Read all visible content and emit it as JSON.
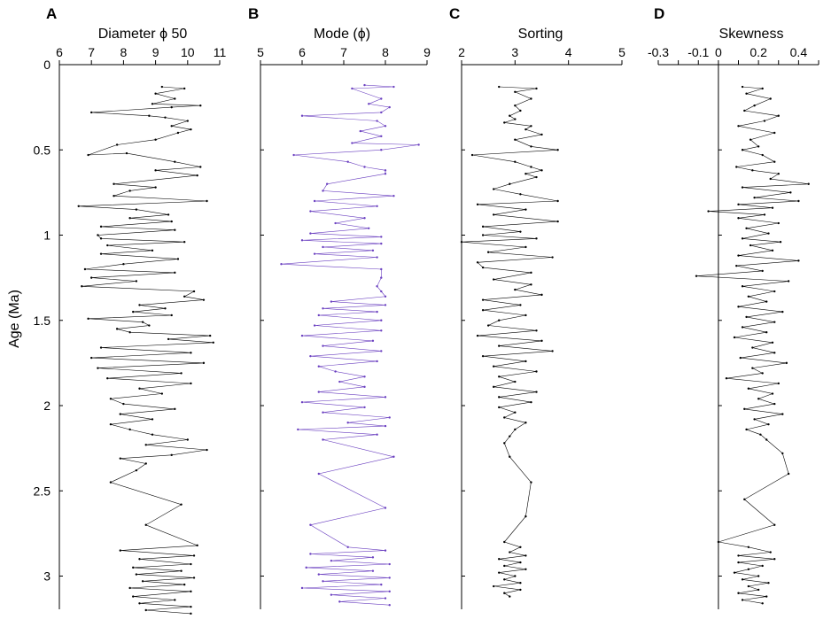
{
  "chart_data": {
    "type": "line",
    "ylabel": "Age (Ma)",
    "y_axis": {
      "ticks": [
        0,
        0.5,
        1,
        1.5,
        2,
        2.5,
        3
      ],
      "tick_labels": [
        "0",
        "0.5",
        "1",
        "1.5",
        "2",
        "2.5",
        "3"
      ],
      "range": [
        0,
        3.2
      ],
      "reversed": true
    },
    "panels": [
      {
        "letter": "A",
        "title": "Diameter ϕ 50",
        "xlim": [
          6,
          11
        ],
        "xticks": [
          6,
          7,
          8,
          9,
          10,
          11
        ],
        "xtick_labels": [
          "6",
          "7",
          "8",
          "9",
          "10",
          "11"
        ],
        "color": "#000000",
        "series": [
          {
            "x": [
              9.2,
              9.9,
              9.0,
              9.6,
              8.9,
              10.4,
              9.5,
              7.0,
              8.8,
              9.3,
              10.0,
              9.5,
              10.1,
              9.7,
              9.0,
              7.8,
              6.9,
              8.1,
              9.6,
              10.4,
              9.0,
              10.3,
              7.7,
              9.0,
              8.2,
              7.7,
              10.6,
              6.6,
              8.4,
              9.4,
              8.2,
              9.5,
              7.3,
              9.6,
              7.2,
              7.3,
              9.9,
              7.5,
              8.9,
              7.3,
              9.7,
              8.0,
              6.8,
              9.6,
              7.0,
              8.4,
              6.7,
              10.2,
              9.9,
              10.5,
              8.5,
              9.3,
              8.3,
              9.5,
              6.9,
              8.6,
              8.8,
              7.8,
              8.2,
              10.7,
              9.4,
              10.8,
              7.3,
              10.1,
              7.0,
              10.5,
              7.2,
              9.8,
              7.5,
              10.1,
              8.5,
              9.2,
              7.6,
              8.0,
              9.6,
              7.9,
              8.9,
              7.6,
              8.2,
              8.9,
              10.0,
              8.7,
              10.6,
              9.5,
              7.9,
              8.7,
              8.4,
              7.6,
              9.8,
              8.7,
              10.3,
              7.9,
              10.2,
              8.5,
              10.1,
              8.3,
              9.8,
              8.4,
              10.2,
              8.6,
              9.9,
              8.2,
              10.1,
              8.3,
              9.6,
              8.5,
              10.1,
              8.7,
              10.1
            ],
            "y": [
              0.13,
              0.14,
              0.17,
              0.2,
              0.23,
              0.24,
              0.25,
              0.28,
              0.3,
              0.31,
              0.33,
              0.36,
              0.38,
              0.4,
              0.44,
              0.47,
              0.53,
              0.52,
              0.57,
              0.6,
              0.62,
              0.65,
              0.7,
              0.72,
              0.74,
              0.77,
              0.8,
              0.83,
              0.85,
              0.88,
              0.9,
              0.92,
              0.95,
              0.97,
              1.0,
              1.02,
              1.04,
              1.06,
              1.09,
              1.11,
              1.14,
              1.17,
              1.2,
              1.22,
              1.25,
              1.27,
              1.3,
              1.33,
              1.36,
              1.38,
              1.41,
              1.43,
              1.45,
              1.47,
              1.49,
              1.51,
              1.53,
              1.55,
              1.57,
              1.59,
              1.61,
              1.63,
              1.66,
              1.69,
              1.72,
              1.75,
              1.78,
              1.81,
              1.84,
              1.87,
              1.9,
              1.93,
              1.96,
              1.99,
              2.02,
              2.05,
              2.08,
              2.11,
              2.14,
              2.17,
              2.2,
              2.23,
              2.26,
              2.29,
              2.31,
              2.34,
              2.38,
              2.45,
              2.58,
              2.7,
              2.82,
              2.85,
              2.88,
              2.9,
              2.93,
              2.95,
              2.97,
              2.99,
              3.01,
              3.03,
              3.05,
              3.07,
              3.09,
              3.12,
              3.14,
              3.16,
              3.18,
              3.2,
              3.22
            ]
          }
        ]
      },
      {
        "letter": "B",
        "title": "Mode (ϕ)",
        "xlim": [
          5,
          9
        ],
        "xticks": [
          5,
          6,
          7,
          8,
          9
        ],
        "xtick_labels": [
          "5",
          "6",
          "7",
          "8",
          "9"
        ],
        "color": "#6a3fc0",
        "series": [
          {
            "x": [
              7.5,
              8.2,
              7.2,
              7.9,
              7.6,
              8.1,
              7.9,
              6.0,
              7.8,
              8.0,
              7.4,
              7.9,
              7.2,
              8.8,
              7.9,
              5.8,
              7.1,
              7.5,
              8.0,
              8.0,
              6.6,
              6.5,
              8.2,
              6.3,
              7.8,
              6.2,
              7.5,
              6.8,
              7.6,
              6.2,
              7.9,
              6.0,
              7.9,
              6.5,
              7.7,
              6.3,
              7.8,
              5.5,
              7.9,
              7.9,
              7.8,
              7.9,
              8.0,
              6.7,
              8.0,
              6.5,
              7.8,
              6.4,
              7.9,
              6.3,
              7.9,
              6.0,
              7.7,
              6.5,
              7.9,
              6.2,
              7.8,
              6.4,
              6.8,
              7.5,
              6.9,
              7.5,
              6.4,
              8.0,
              6.0,
              7.5,
              6.5,
              8.1,
              7.1,
              8.0,
              5.9,
              7.8,
              6.5,
              8.2,
              6.4,
              8.0,
              6.2,
              7.1,
              8.0,
              6.2,
              7.7,
              6.7,
              8.1,
              6.1,
              7.7,
              6.4,
              8.1,
              6.5,
              7.9,
              6.0,
              8.1,
              6.7,
              8.0,
              6.9,
              8.1
            ],
            "y": [
              0.12,
              0.13,
              0.14,
              0.2,
              0.23,
              0.25,
              0.28,
              0.3,
              0.33,
              0.36,
              0.39,
              0.42,
              0.46,
              0.47,
              0.5,
              0.53,
              0.57,
              0.6,
              0.62,
              0.64,
              0.7,
              0.74,
              0.77,
              0.8,
              0.83,
              0.86,
              0.9,
              0.93,
              0.96,
              0.99,
              1.01,
              1.03,
              1.05,
              1.07,
              1.09,
              1.11,
              1.13,
              1.17,
              1.2,
              1.25,
              1.3,
              1.33,
              1.36,
              1.39,
              1.41,
              1.43,
              1.45,
              1.47,
              1.5,
              1.53,
              1.56,
              1.59,
              1.62,
              1.65,
              1.68,
              1.71,
              1.74,
              1.77,
              1.8,
              1.83,
              1.86,
              1.89,
              1.92,
              1.95,
              1.98,
              2.01,
              2.04,
              2.07,
              2.1,
              2.12,
              2.14,
              2.17,
              2.2,
              2.3,
              2.4,
              2.6,
              2.7,
              2.83,
              2.85,
              2.87,
              2.89,
              2.91,
              2.93,
              2.95,
              2.97,
              2.99,
              3.01,
              3.03,
              3.05,
              3.07,
              3.09,
              3.11,
              3.13,
              3.15,
              3.17
            ]
          }
        ]
      },
      {
        "letter": "C",
        "title": "Sorting",
        "xlim": [
          2,
          5
        ],
        "xticks": [
          2,
          3,
          4,
          5
        ],
        "xtick_labels": [
          "2",
          "3",
          "4",
          "5"
        ],
        "color": "#000000",
        "series": [
          {
            "x": [
              2.7,
              3.4,
              3.0,
              3.3,
              3.0,
              3.1,
              2.9,
              3.0,
              2.8,
              3.3,
              3.2,
              3.5,
              3.0,
              3.3,
              3.8,
              2.2,
              3.0,
              3.3,
              3.5,
              3.2,
              3.4,
              2.9,
              2.6,
              3.1,
              3.8,
              2.3,
              3.2,
              2.6,
              3.8,
              2.4,
              3.1,
              2.4,
              3.4,
              2.0,
              3.2,
              2.5,
              3.7,
              2.3,
              2.4,
              3.3,
              2.6,
              3.3,
              3.0,
              3.5,
              2.4,
              3.1,
              2.4,
              3.2,
              2.7,
              2.5,
              3.4,
              2.3,
              3.5,
              2.7,
              3.7,
              2.4,
              3.2,
              2.6,
              3.4,
              2.7,
              3.0,
              2.6,
              3.4,
              2.7,
              3.3,
              2.7,
              3.0,
              2.8,
              3.2,
              3.0,
              2.9,
              2.8,
              2.9,
              3.3,
              3.2,
              2.8,
              3.1,
              2.9,
              3.2,
              2.7,
              3.1,
              2.8,
              3.2,
              2.7,
              3.0,
              2.8,
              3.1,
              2.6,
              3.1,
              2.8,
              2.9
            ],
            "y": [
              0.13,
              0.14,
              0.16,
              0.2,
              0.24,
              0.27,
              0.3,
              0.32,
              0.34,
              0.36,
              0.38,
              0.41,
              0.44,
              0.48,
              0.5,
              0.53,
              0.57,
              0.6,
              0.62,
              0.64,
              0.66,
              0.7,
              0.73,
              0.76,
              0.8,
              0.82,
              0.85,
              0.88,
              0.92,
              0.95,
              0.98,
              1.0,
              1.02,
              1.04,
              1.07,
              1.1,
              1.13,
              1.16,
              1.19,
              1.22,
              1.26,
              1.29,
              1.32,
              1.35,
              1.38,
              1.41,
              1.44,
              1.47,
              1.5,
              1.53,
              1.56,
              1.59,
              1.62,
              1.65,
              1.68,
              1.71,
              1.74,
              1.77,
              1.8,
              1.83,
              1.86,
              1.89,
              1.92,
              1.95,
              1.98,
              2.01,
              2.04,
              2.07,
              2.1,
              2.14,
              2.18,
              2.22,
              2.3,
              2.45,
              2.65,
              2.8,
              2.83,
              2.86,
              2.88,
              2.9,
              2.92,
              2.94,
              2.96,
              2.98,
              3.0,
              3.02,
              3.04,
              3.06,
              3.08,
              3.1,
              3.12
            ]
          }
        ]
      },
      {
        "letter": "D",
        "title": "Skewness",
        "xlim": [
          -0.3,
          0.5
        ],
        "xticks": [
          -0.3,
          -0.2,
          -0.1,
          0,
          0.1,
          0.2,
          0.3,
          0.4,
          0.5
        ],
        "xtick_labels": [
          "-0.3",
          "",
          "-0.1",
          "0",
          "",
          "0.2",
          "",
          "0.4",
          ""
        ],
        "color": "#000000",
        "series": [
          {
            "x": [
              0.12,
              0.22,
              0.14,
              0.26,
              0.18,
              0.13,
              0.3,
              0.23,
              0.1,
              0.28,
              0.16,
              0.2,
              0.12,
              0.22,
              0.28,
              0.09,
              0.17,
              0.3,
              0.26,
              0.45,
              0.12,
              0.36,
              0.18,
              0.4,
              0.1,
              0.27,
              -0.05,
              0.23,
              0.1,
              0.3,
              0.14,
              0.25,
              0.12,
              0.31,
              0.16,
              0.27,
              0.1,
              0.4,
              0.09,
              0.22,
              -0.11,
              0.35,
              0.12,
              0.28,
              0.15,
              0.24,
              0.1,
              0.32,
              0.14,
              0.28,
              0.12,
              0.24,
              0.08,
              0.27,
              0.17,
              0.28,
              0.11,
              0.34,
              0.17,
              0.22,
              0.04,
              0.3,
              0.15,
              0.27,
              0.2,
              0.28,
              0.13,
              0.32,
              0.18,
              0.25,
              0.14,
              0.21,
              0.24,
              0.32,
              0.35,
              0.13,
              0.28,
              0.0,
              0.15,
              0.26,
              0.1,
              0.28,
              0.1,
              0.22,
              0.15,
              0.08,
              0.2,
              0.12,
              0.25,
              0.15,
              0.2,
              0.1,
              0.24,
              0.12,
              0.22
            ],
            "y": [
              0.13,
              0.14,
              0.17,
              0.2,
              0.24,
              0.27,
              0.3,
              0.33,
              0.36,
              0.4,
              0.44,
              0.48,
              0.5,
              0.53,
              0.57,
              0.6,
              0.62,
              0.64,
              0.67,
              0.7,
              0.72,
              0.75,
              0.78,
              0.8,
              0.82,
              0.84,
              0.86,
              0.88,
              0.9,
              0.93,
              0.96,
              0.99,
              1.02,
              1.04,
              1.06,
              1.09,
              1.12,
              1.15,
              1.18,
              1.21,
              1.24,
              1.27,
              1.3,
              1.33,
              1.36,
              1.39,
              1.42,
              1.45,
              1.48,
              1.51,
              1.54,
              1.57,
              1.6,
              1.63,
              1.66,
              1.69,
              1.72,
              1.75,
              1.78,
              1.81,
              1.84,
              1.87,
              1.9,
              1.93,
              1.96,
              1.99,
              2.02,
              2.05,
              2.08,
              2.11,
              2.14,
              2.17,
              2.2,
              2.28,
              2.4,
              2.55,
              2.7,
              2.8,
              2.83,
              2.86,
              2.88,
              2.9,
              2.92,
              2.94,
              2.96,
              2.98,
              3.0,
              3.02,
              3.04,
              3.06,
              3.08,
              3.1,
              3.12,
              3.14,
              3.16
            ]
          }
        ]
      }
    ]
  }
}
